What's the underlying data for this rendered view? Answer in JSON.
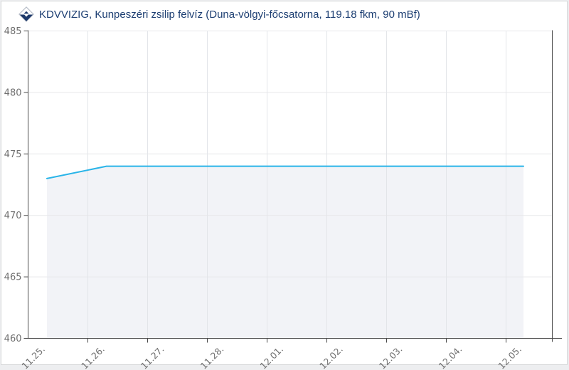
{
  "chart": {
    "title": "KDVVIZIG, Kunpeszéri zsilip felvíz (Duna-völgyi-főcsatorna, 119.18 fkm, 90 mBf)",
    "title_color": "#1c3e72",
    "logo_icon": "water-diamond-logo"
  },
  "chart_data": {
    "type": "area",
    "title": "KDVVIZIG, Kunpeszéri zsilip felvíz (Duna-völgyi-főcsatorna, 119.18 fkm, 90 mBf)",
    "categories": [
      "11.25.",
      "11.26.",
      "11.27.",
      "11.28.",
      "12.01.",
      "12.02.",
      "12.03.",
      "12.04.",
      "12.05."
    ],
    "values": [
      473,
      474,
      474,
      474,
      474,
      474,
      474,
      474,
      474
    ],
    "xlabel": "",
    "ylabel": "",
    "ylim": [
      460,
      485
    ],
    "yticks": [
      460,
      465,
      470,
      475,
      480,
      485
    ],
    "grid": true,
    "legend": false,
    "line_color": "#29b4e8",
    "fill_color": "#f2f3f7",
    "axis_color": "#4a4a4a",
    "gridline_color": "#e7e8ea",
    "tick_label_color": "#6f6f6f"
  }
}
